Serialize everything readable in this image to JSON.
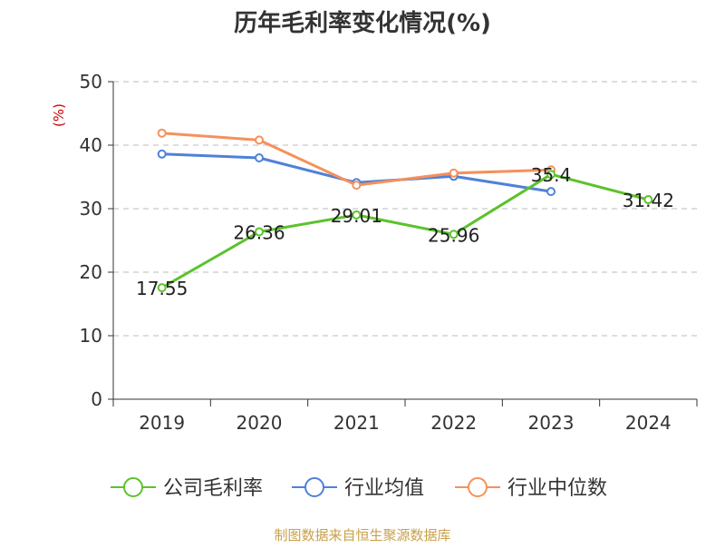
{
  "chart_data": {
    "type": "line",
    "title": "历年毛利率变化情况(%)",
    "ylabel": "(%)",
    "xlabel": "",
    "categories": [
      "2019",
      "2020",
      "2021",
      "2022",
      "2023",
      "2024"
    ],
    "ylim": [
      0,
      50
    ],
    "yticks": [
      0,
      10,
      20,
      30,
      40,
      50
    ],
    "grid": true,
    "legend_position": "bottom",
    "series": [
      {
        "name": "公司毛利率",
        "color": "#5cc22c",
        "values": [
          17.55,
          26.36,
          29.01,
          25.96,
          35.4,
          31.42
        ],
        "labels": [
          "17.55",
          "26.36",
          "29.01",
          "25.96",
          "35.4",
          "31.42"
        ]
      },
      {
        "name": "行业均值",
        "color": "#4f81d9",
        "values": [
          38.6,
          38.0,
          34.1,
          35.1,
          32.7,
          null
        ]
      },
      {
        "name": "行业中位数",
        "color": "#f5915b",
        "values": [
          41.9,
          40.8,
          33.7,
          35.6,
          36.1,
          null
        ]
      }
    ]
  },
  "source": "制图数据来自恒生聚源数据库",
  "colors": {
    "title": "#333333",
    "axis": "#333333",
    "grid": "#bbbbbb",
    "ylabel": "#cc0000",
    "source": "#c9a04a"
  }
}
